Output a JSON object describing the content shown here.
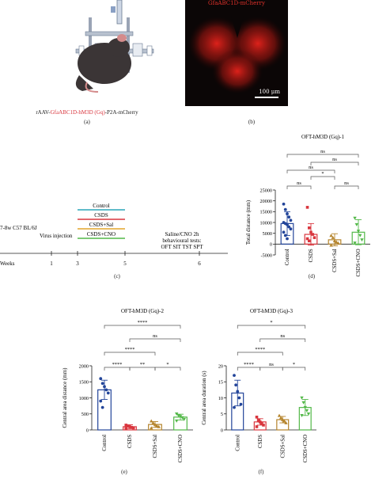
{
  "panel_a": {
    "caption_prefix": "rAAV-",
    "caption_highlight": "GfaABC1D-hM3D (Gq)",
    "caption_suffix": "-P2A-mCherry",
    "label": "(a)"
  },
  "panel_b": {
    "title": "GfaABC1D-mCherry",
    "scale": "100 μm",
    "label": "(b)"
  },
  "panel_c": {
    "label": "(c)",
    "animal": "7-8w C57 BL/6J",
    "virus": "Virus injection",
    "axis_label": "Weeks",
    "week_ticks": [
      "1",
      "3",
      "5",
      "6"
    ],
    "groups": [
      "Control",
      "CSDS",
      "CSDS+Sal",
      "CSDS+CNO"
    ],
    "group_colors": [
      "#2aa5b8",
      "#d9363e",
      "#e3a62a",
      "#52b848"
    ],
    "tests_line1": "Saline/CNO 2h",
    "tests_line2": "behavioural tests:",
    "tests_line3": "OFT SIT TST SPT"
  },
  "colors": {
    "Control": "#23459a",
    "CSDS": "#d9363e",
    "CSDS+Sal": "#b5842c",
    "CSDS+CNO": "#52b848"
  },
  "chart_data": [
    {
      "type": "bar",
      "panel": "(d)",
      "title": "OFT-hM3D (Gq)-1",
      "ylabel": "Total distance (mm)",
      "yticks": [
        "25000",
        "20000",
        "15000",
        "10000",
        "5000",
        "0",
        "-5000"
      ],
      "ylim": [
        -5000,
        25000
      ],
      "categories": [
        "Control",
        "CSDS",
        "CSDS+Sal",
        "CSDS+CNO"
      ],
      "values": [
        9500,
        4500,
        2000,
        5500
      ],
      "errors": [
        5500,
        5000,
        2800,
        5800
      ],
      "points": [
        [
          18500,
          16000,
          14000,
          12500,
          11000,
          10000,
          9500,
          9000,
          8000,
          7000,
          5500,
          4000,
          2500
        ],
        [
          17000,
          7500,
          5500,
          4500,
          3000,
          2500,
          1500
        ],
        [
          4000,
          3000,
          1500,
          1000,
          500,
          -500
        ],
        [
          12000,
          9000,
          6000,
          4000,
          2000,
          500
        ]
      ],
      "markers": [
        "circle",
        "square",
        "triangle",
        "triangle-down"
      ],
      "significance": [
        "ns",
        "ns",
        "ns",
        "*",
        "ns",
        "ns"
      ]
    },
    {
      "type": "bar",
      "panel": "(e)",
      "title": "OFT-hM3D (Gq)-2",
      "ylabel": "Central area distance (mm)",
      "yticks": [
        "2000",
        "1500",
        "1000",
        "500",
        "0"
      ],
      "ylim": [
        0,
        2000
      ],
      "categories": [
        "Control",
        "CSDS",
        "CSDS+Sal",
        "CSDS+CNO"
      ],
      "values": [
        1250,
        100,
        170,
        400
      ],
      "errors": [
        300,
        60,
        90,
        90
      ],
      "points": [
        [
          1600,
          1450,
          1350,
          1250,
          1150,
          900,
          700
        ],
        [
          150,
          120,
          100,
          80,
          60,
          40
        ],
        [
          280,
          220,
          170,
          130,
          100,
          60
        ],
        [
          500,
          450,
          420,
          380,
          330,
          280
        ]
      ],
      "markers": [
        "circle",
        "square",
        "triangle",
        "triangle-down"
      ],
      "significance": [
        "****",
        "****",
        "****",
        "**",
        "ns",
        "*"
      ],
      "label": "(e)"
    },
    {
      "type": "bar",
      "panel": "(f)",
      "title": "OFT-hM3D (Gq)-3",
      "ylabel": "Central area duration (s)",
      "yticks": [
        "20",
        "15",
        "10",
        "5",
        "0"
      ],
      "ylim": [
        0,
        20
      ],
      "categories": [
        "Control",
        "CSDS",
        "CSDS+Sal",
        "CSDS+CNO"
      ],
      "values": [
        11.5,
        2.5,
        3.2,
        7.0
      ],
      "errors": [
        4.0,
        1.0,
        1.0,
        2.5
      ],
      "points": [
        [
          17,
          14,
          12,
          10,
          8,
          7
        ],
        [
          4,
          3,
          2.5,
          2,
          1.5,
          1
        ],
        [
          4.5,
          3.8,
          3.2,
          2.8,
          2.2
        ],
        [
          10,
          8.5,
          7,
          6,
          5,
          4.5
        ]
      ],
      "markers": [
        "circle",
        "square",
        "triangle",
        "triangle-down"
      ],
      "significance": [
        "****",
        "****",
        "*",
        "ns",
        "ns",
        "*"
      ],
      "label": "(f)"
    }
  ]
}
